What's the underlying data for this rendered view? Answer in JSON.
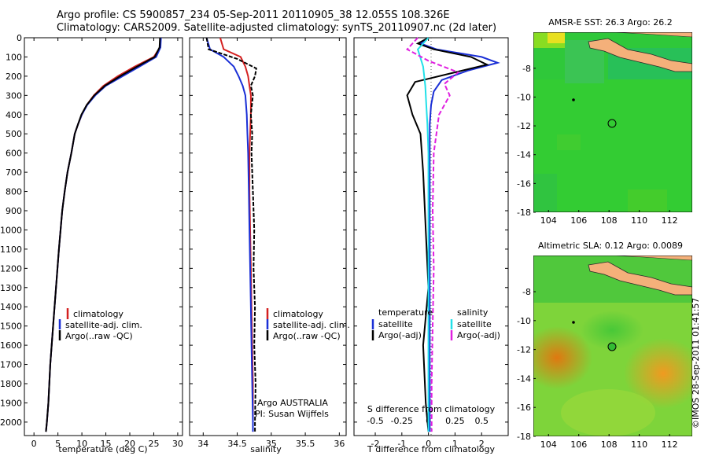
{
  "header": {
    "line1": "Argo profile: CS 5900857_234 05-Sep-2011 20110905_38 12.055S 108.326E",
    "line2": "Climatology: CARS2009. Satellite-adjusted climatology: synTS_20110907.nc (2d later)"
  },
  "footer": {
    "credit": "©IMOS 28-Sep-2011 01:41:57"
  },
  "legend": {
    "climatology": "climatology",
    "satadj": "satellite-adj. clim.",
    "argo_raw": "Argo(..raw -QC)",
    "temperature": "temperature",
    "salinity": "salinity",
    "satellite": "satellite",
    "argo_adj": "Argo(-adj)"
  },
  "notes": {
    "argo_country": "Argo AUSTRALIA",
    "pi": "PI: Susan Wijffels"
  },
  "colors": {
    "climatology": "#d42020",
    "satellite_adj": "#1a2fd6",
    "argo": "#000000",
    "salinity_satellite": "#22e0e8",
    "salinity_argo": "#e020e0",
    "land": "#f4b07a"
  },
  "chart_data": [
    {
      "type": "line",
      "xlabel": "temperature (deg C)",
      "ylabel": "",
      "xlim": [
        -2,
        31
      ],
      "ylim": [
        2070,
        0
      ],
      "xticks": [
        0,
        5,
        10,
        15,
        20,
        25,
        30
      ],
      "yticks": [
        0,
        100,
        200,
        300,
        400,
        500,
        600,
        700,
        800,
        900,
        1000,
        1100,
        1200,
        1300,
        1400,
        1500,
        1600,
        1700,
        1800,
        1900,
        2000
      ],
      "series": [
        {
          "name": "climatology",
          "color": "#d42020",
          "x": [
            26.4,
            26.3,
            25.0,
            21.0,
            17.5,
            14.5,
            12.5,
            11.0,
            10.0,
            9.2,
            8.5,
            7.8,
            7.0,
            6.4,
            5.9,
            5.2,
            4.6,
            4.0,
            3.4,
            3.0,
            2.7,
            2.5
          ],
          "y": [
            0,
            50,
            100,
            150,
            200,
            250,
            300,
            350,
            400,
            450,
            500,
            600,
            700,
            800,
            900,
            1100,
            1300,
            1500,
            1700,
            1900,
            2000,
            2050
          ]
        },
        {
          "name": "satellite-adj. clim.",
          "color": "#1a2fd6",
          "x": [
            26.5,
            26.4,
            25.5,
            22.0,
            18.5,
            15.0,
            12.8,
            11.1,
            10.0,
            9.2,
            8.5,
            7.8,
            7.0,
            6.4,
            5.9,
            5.2,
            4.6,
            4.0,
            3.4,
            3.0,
            2.7,
            2.5
          ],
          "y": [
            0,
            50,
            100,
            150,
            200,
            250,
            300,
            350,
            400,
            450,
            500,
            600,
            700,
            800,
            900,
            1100,
            1300,
            1500,
            1700,
            1900,
            2000,
            2050
          ]
        },
        {
          "name": "Argo(..raw -QC)",
          "color": "#000000",
          "x": [
            26.3,
            26.2,
            25.2,
            21.5,
            18.0,
            14.8,
            12.6,
            11.0,
            9.9,
            9.2,
            8.5,
            7.8,
            7.0,
            6.4,
            5.9,
            5.2,
            4.6,
            4.0,
            3.4,
            3.0,
            2.7,
            2.5
          ],
          "y": [
            0,
            50,
            100,
            150,
            200,
            250,
            300,
            350,
            400,
            450,
            500,
            600,
            700,
            800,
            900,
            1100,
            1300,
            1500,
            1700,
            1900,
            2000,
            2050
          ]
        }
      ]
    },
    {
      "type": "line",
      "xlabel": "salinity",
      "xlim": [
        33.8,
        36.1
      ],
      "ylim": [
        2070,
        0
      ],
      "xticks": [
        34,
        34.5,
        35,
        35.5,
        36
      ],
      "series": [
        {
          "name": "climatology",
          "color": "#d42020",
          "x": [
            34.25,
            34.3,
            34.55,
            34.62,
            34.66,
            34.68,
            34.7,
            34.7,
            34.69,
            34.68,
            34.68,
            34.69,
            34.7,
            34.71,
            34.72,
            34.73,
            34.73,
            34.73
          ],
          "y": [
            0,
            60,
            100,
            150,
            200,
            250,
            300,
            400,
            500,
            600,
            800,
            1000,
            1200,
            1400,
            1600,
            1800,
            2000,
            2050
          ]
        },
        {
          "name": "satellite-adj. clim.",
          "color": "#1a2fd6",
          "x": [
            34.05,
            34.1,
            34.3,
            34.45,
            34.52,
            34.58,
            34.62,
            34.64,
            34.65,
            34.66,
            34.67,
            34.68,
            34.69,
            34.7,
            34.71,
            34.72,
            34.73,
            34.73
          ],
          "y": [
            0,
            60,
            100,
            150,
            200,
            250,
            300,
            400,
            500,
            600,
            800,
            1000,
            1200,
            1400,
            1600,
            1800,
            2000,
            2050
          ]
        },
        {
          "name": "Argo(..raw -QC)",
          "color": "#000000",
          "x": [
            34.05,
            34.08,
            34.5,
            34.78,
            34.76,
            34.7,
            34.73,
            34.7,
            34.72,
            34.71,
            34.73,
            34.75,
            34.74,
            34.76,
            34.75,
            34.77,
            34.76,
            34.76
          ],
          "y": [
            0,
            60,
            110,
            160,
            200,
            250,
            300,
            400,
            500,
            600,
            800,
            1000,
            1200,
            1400,
            1600,
            1800,
            2000,
            2050
          ]
        }
      ]
    },
    {
      "type": "line",
      "xlabel": "T difference from climatology",
      "top_xlabel": "S difference from climatology",
      "xlim": [
        -2.8,
        3.0
      ],
      "ylim": [
        2070,
        0
      ],
      "xticks": [
        -2,
        -1,
        0,
        1,
        2
      ],
      "top_ticks": [
        -0.5,
        -0.25,
        0,
        0.25,
        0.5
      ],
      "series": [
        {
          "name": "temperature satellite",
          "color": "#1a2fd6",
          "x": [
            0.0,
            -0.3,
            0.3,
            2.0,
            2.6,
            1.5,
            0.5,
            0.2,
            0.1,
            0.05,
            0.05,
            0.05,
            0.05,
            0.05,
            0.05
          ],
          "y": [
            0,
            30,
            60,
            100,
            130,
            170,
            220,
            280,
            350,
            450,
            600,
            900,
            1300,
            1700,
            2050
          ]
        },
        {
          "name": "temperature Argo(-adj)",
          "color": "#000000",
          "x": [
            0.0,
            -0.4,
            0.2,
            1.6,
            2.2,
            1.0,
            -0.5,
            -0.8,
            -0.6,
            -0.3,
            -0.2,
            -0.1,
            0.0,
            -0.2,
            -0.1,
            0.0
          ],
          "y": [
            0,
            30,
            60,
            100,
            140,
            180,
            230,
            300,
            400,
            500,
            700,
            1000,
            1300,
            1600,
            1900,
            2050
          ]
        },
        {
          "name": "salinity satellite",
          "color": "#22e0e8",
          "x": [
            0.0,
            -0.1,
            -0.05,
            -0.03,
            -0.02,
            -0.01,
            0.0,
            0.0,
            0.0,
            0.0
          ],
          "y": [
            0,
            60,
            150,
            250,
            350,
            450,
            600,
            1000,
            1500,
            2050
          ]
        },
        {
          "name": "salinity Argo(-adj)",
          "color": "#e020e0",
          "x": [
            -0.1,
            -0.2,
            0.0,
            0.28,
            0.15,
            0.2,
            0.1,
            0.05,
            0.04,
            0.05,
            0.04,
            0.03,
            0.03
          ],
          "y": [
            0,
            60,
            120,
            180,
            240,
            300,
            400,
            600,
            900,
            1200,
            1500,
            1800,
            2050
          ]
        }
      ]
    },
    {
      "type": "heatmap",
      "title": "AMSR-E SST: 26.3 Argo: 26.2",
      "xlim": [
        103,
        113.5
      ],
      "ylim": [
        -18,
        -5.5
      ],
      "xticks": [
        104,
        106,
        108,
        110,
        112
      ],
      "yticks": [
        -8,
        -10,
        -12,
        -14,
        -16,
        -18
      ],
      "argo_marker": [
        108.3,
        -12.05
      ],
      "prev_marker": [
        105.7,
        -10.5
      ]
    },
    {
      "type": "heatmap",
      "title": "Altimetric SLA: 0.12 Argo: 0.0089",
      "xlim": [
        103,
        113.5
      ],
      "ylim": [
        -18,
        -5.5
      ],
      "xticks": [
        104,
        106,
        108,
        110,
        112
      ],
      "yticks": [
        -8,
        -10,
        -12,
        -14,
        -16,
        -18
      ],
      "argo_marker": [
        108.3,
        -12.05
      ],
      "prev_marker": [
        105.7,
        -10.5
      ]
    }
  ]
}
